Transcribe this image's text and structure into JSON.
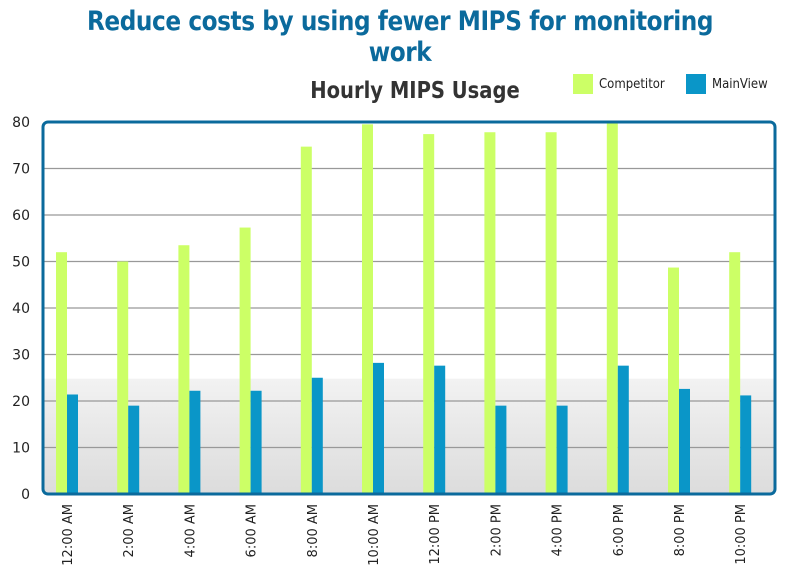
{
  "headline": "Reduce costs by using fewer MIPS for monitoring work",
  "chart_data": {
    "type": "bar",
    "title": "Hourly MIPS Usage",
    "xlabel": "",
    "ylabel": "",
    "ylim": [
      0,
      80
    ],
    "yticks": [
      0,
      10,
      20,
      30,
      40,
      50,
      60,
      70,
      80
    ],
    "grid": true,
    "legend_position": "top-right",
    "categories": [
      "12:00 AM",
      "2:00 AM",
      "4:00 AM",
      "6:00 AM",
      "8:00 AM",
      "10:00 AM",
      "12:00 PM",
      "2:00 PM",
      "4:00 PM",
      "6:00 PM",
      "8:00 PM",
      "10:00 PM"
    ],
    "series": [
      {
        "name": "Competitor",
        "color": "#ccff66",
        "values": [
          52,
          50,
          53.5,
          57.3,
          74.7,
          79.5,
          77.4,
          77.8,
          77.8,
          80,
          48.7,
          52
        ]
      },
      {
        "name": "MainView",
        "color": "#0a96c8",
        "values": [
          21.4,
          19,
          22.2,
          22.2,
          25,
          28.2,
          27.6,
          19,
          19,
          27.6,
          22.6,
          21.2
        ]
      }
    ]
  },
  "colors": {
    "headline": "#0b6a9c",
    "frame": "#0b6a9c",
    "grid": "#999999"
  }
}
